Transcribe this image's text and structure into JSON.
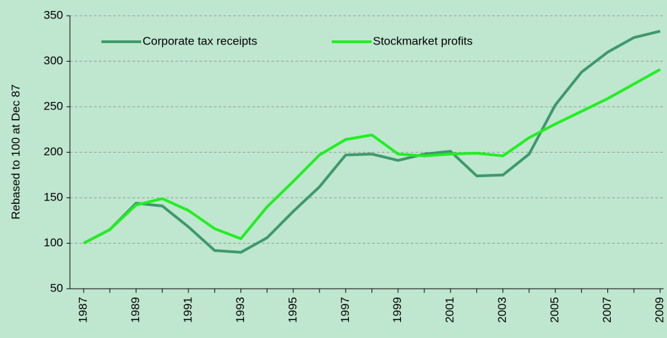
{
  "chart_data": {
    "type": "line",
    "y_label": "Rebased to 100 at Dec 87",
    "categories": [
      "1987",
      null,
      "1989",
      null,
      "1991",
      null,
      "1993",
      null,
      "1995",
      null,
      "1997",
      null,
      "1999",
      null,
      "2001",
      null,
      "2003",
      null,
      "2005",
      null,
      "2007",
      null,
      "2009"
    ],
    "series": [
      {
        "name": "Corporate tax receipts",
        "color": "#3d9a6a",
        "values": [
          100,
          115,
          144,
          141,
          118,
          92,
          90,
          106,
          135,
          162,
          197,
          198,
          191,
          198,
          201,
          174,
          175,
          198,
          252,
          288,
          310,
          326,
          333
        ]
      },
      {
        "name": "Stockmarket profits",
        "color": "#22ee22",
        "values": [
          100,
          115,
          142,
          149,
          136,
          116,
          105,
          140,
          168,
          197,
          214,
          219,
          198,
          196,
          198,
          199,
          196,
          216,
          231,
          245,
          259,
          275,
          291
        ]
      }
    ],
    "ylim": [
      50,
      350
    ],
    "yticks": [
      50,
      100,
      150,
      200,
      250,
      300,
      350
    ],
    "grid": true
  }
}
